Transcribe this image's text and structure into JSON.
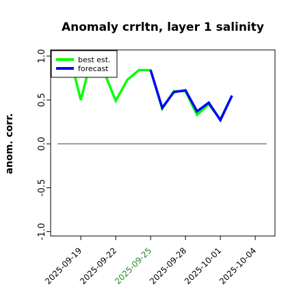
{
  "chart_data": {
    "type": "line",
    "title": "Anomaly crrltn, layer 1 salinity",
    "ylabel": "anom. corr.",
    "xlabel": "",
    "ylim": [
      -1.05,
      1.07
    ],
    "yticks": [
      1.0,
      0.5,
      0.0,
      -0.5,
      -1.0
    ],
    "xticks": [
      {
        "label": "2025-09-19",
        "x": 2.0,
        "color": "#000000"
      },
      {
        "label": "2025-09-22",
        "x": 5.0,
        "color": "#000000"
      },
      {
        "label": "2025-09-25",
        "x": 8.0,
        "color": "#228B22"
      },
      {
        "label": "2025-09-28",
        "x": 11.0,
        "color": "#000000"
      },
      {
        "label": "2025-10-01",
        "x": 14.0,
        "color": "#000000"
      },
      {
        "label": "2025-10-04",
        "x": 17.0,
        "color": "#000000"
      }
    ],
    "xlim": [
      -0.6,
      18.7
    ],
    "reference_line": {
      "y": 0.0,
      "x": [
        0.0,
        18.0
      ],
      "color": "#666666"
    },
    "legend": {
      "placement": "top-left"
    },
    "series": [
      {
        "name": "best est.",
        "color": "#00ff00",
        "x": [
          1,
          2,
          3,
          4,
          5,
          6,
          7,
          8,
          9,
          10,
          11,
          12,
          13,
          14,
          15
        ],
        "y": [
          1.02,
          0.5,
          1.02,
          0.82,
          0.49,
          0.73,
          0.84,
          0.84,
          0.4,
          0.6,
          0.6,
          0.33,
          0.45,
          0.28,
          0.55
        ]
      },
      {
        "name": "forecast",
        "color": "#0000ff",
        "x": [
          8,
          9,
          10,
          11,
          12,
          13,
          14,
          15
        ],
        "y": [
          0.84,
          0.41,
          0.59,
          0.61,
          0.37,
          0.47,
          0.27,
          0.55
        ]
      }
    ]
  }
}
